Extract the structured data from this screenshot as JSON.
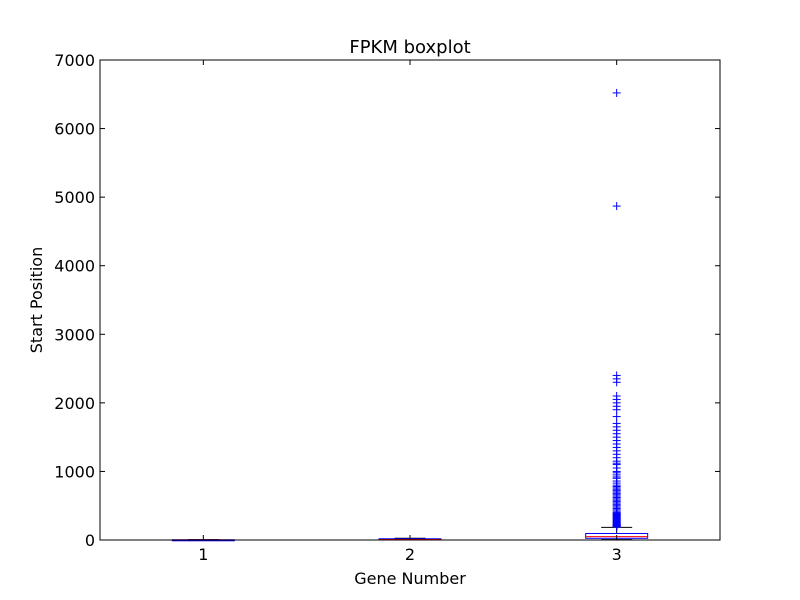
{
  "chart_data": {
    "type": "boxplot",
    "title": "FPKM boxplot",
    "xlabel": "Gene Number",
    "ylabel": "Start Position",
    "ylim": [
      0,
      7000
    ],
    "yticks": [
      0,
      1000,
      2000,
      3000,
      4000,
      5000,
      6000,
      7000
    ],
    "categories": [
      "1",
      "2",
      "3"
    ],
    "grid": false,
    "legend": "none",
    "colors": {
      "box": "#0000ff",
      "median": "#ff0000",
      "whisker": "#000000",
      "flier": "#0000ff"
    },
    "boxes": [
      {
        "category": "1",
        "whislo": 0,
        "q1": 0,
        "median": 1,
        "q3": 3,
        "whishi": 5,
        "fliers": []
      },
      {
        "category": "2",
        "whislo": 0,
        "q1": 2,
        "median": 8,
        "q3": 18,
        "whishi": 25,
        "fliers": []
      },
      {
        "category": "3",
        "whislo": 5,
        "q1": 25,
        "median": 50,
        "q3": 95,
        "whishi": 185,
        "fliers": [
          190,
          195,
          200,
          205,
          210,
          215,
          220,
          225,
          230,
          240,
          250,
          260,
          270,
          280,
          290,
          300,
          310,
          320,
          330,
          340,
          350,
          360,
          370,
          380,
          390,
          400,
          420,
          440,
          460,
          480,
          500,
          520,
          540,
          560,
          580,
          600,
          620,
          640,
          660,
          680,
          700,
          720,
          740,
          760,
          780,
          800,
          830,
          860,
          900,
          920,
          950,
          980,
          1000,
          1050,
          1100,
          1120,
          1150,
          1200,
          1250,
          1300,
          1350,
          1400,
          1450,
          1500,
          1550,
          1600,
          1650,
          1700,
          1800,
          1900,
          1950,
          2000,
          2050,
          2100,
          2300,
          2350,
          2400,
          4870,
          6520
        ]
      }
    ]
  }
}
